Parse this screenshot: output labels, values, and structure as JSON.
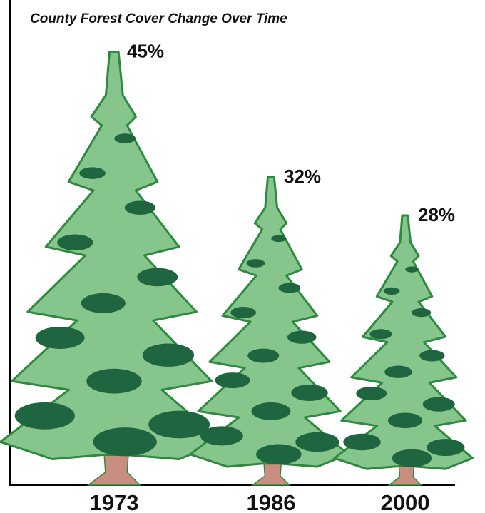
{
  "chart_data": {
    "type": "pictograph",
    "title": "County Forest Cover Change Over Time",
    "categories": [
      "1973",
      "1986",
      "2000"
    ],
    "values": [
      45,
      32,
      28
    ],
    "value_labels": [
      "45%",
      "32%",
      "28%"
    ],
    "color": "#86c68c"
  }
}
